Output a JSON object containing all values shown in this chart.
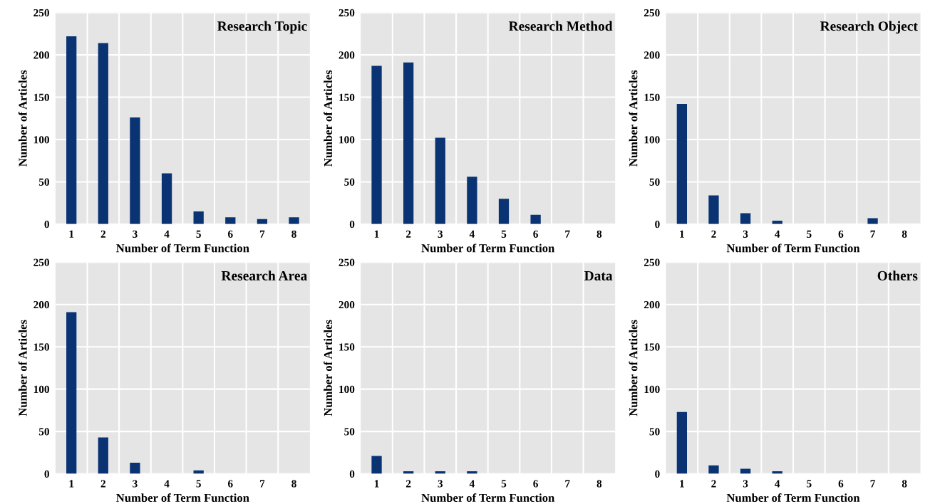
{
  "chart_data": [
    {
      "type": "bar",
      "title": "Research Topic",
      "xlabel": "Number of Term Function",
      "ylabel": "Number of Articles",
      "categories": [
        "1",
        "2",
        "3",
        "4",
        "5",
        "6",
        "7",
        "8"
      ],
      "values": [
        222,
        214,
        126,
        60,
        15,
        8,
        6,
        8
      ],
      "color": "#0a3373",
      "ylim": [
        0,
        250
      ],
      "yticks": [
        0,
        50,
        100,
        150,
        200,
        250
      ],
      "grid": true
    },
    {
      "type": "bar",
      "title": "Research Method",
      "xlabel": "Number of Term Function",
      "ylabel": "Number of Articles",
      "categories": [
        "1",
        "2",
        "3",
        "4",
        "5",
        "6",
        "7",
        "8"
      ],
      "values": [
        187,
        191,
        102,
        56,
        30,
        11,
        0,
        0
      ],
      "color": "#0a3373",
      "ylim": [
        0,
        250
      ],
      "yticks": [
        0,
        50,
        100,
        150,
        200,
        250
      ],
      "grid": true
    },
    {
      "type": "bar",
      "title": "Research Object",
      "xlabel": "Number of Term Function",
      "ylabel": "Number of Articles",
      "categories": [
        "1",
        "2",
        "3",
        "4",
        "5",
        "6",
        "7",
        "8"
      ],
      "values": [
        142,
        34,
        13,
        4,
        0,
        0,
        7,
        0
      ],
      "color": "#0a3373",
      "ylim": [
        0,
        250
      ],
      "yticks": [
        0,
        50,
        100,
        150,
        200,
        250
      ],
      "grid": true
    },
    {
      "type": "bar",
      "title": "Research Area",
      "xlabel": "Number of Term Function",
      "ylabel": "Number of Articles",
      "categories": [
        "1",
        "2",
        "3",
        "4",
        "5",
        "6",
        "7",
        "8"
      ],
      "values": [
        191,
        43,
        13,
        0,
        4,
        0,
        0,
        0
      ],
      "color": "#0a3373",
      "ylim": [
        0,
        250
      ],
      "yticks": [
        0,
        50,
        100,
        150,
        200,
        250
      ],
      "grid": true
    },
    {
      "type": "bar",
      "title": "Data",
      "xlabel": "Number of Term Function",
      "ylabel": "Number of Articles",
      "categories": [
        "1",
        "2",
        "3",
        "4",
        "5",
        "6",
        "7",
        "8"
      ],
      "values": [
        21,
        3,
        3,
        3,
        0,
        0,
        0,
        0
      ],
      "color": "#0a3373",
      "ylim": [
        0,
        250
      ],
      "yticks": [
        0,
        50,
        100,
        150,
        200,
        250
      ],
      "grid": true
    },
    {
      "type": "bar",
      "title": "Others",
      "xlabel": "Number of Term Function",
      "ylabel": "Number of Articles",
      "categories": [
        "1",
        "2",
        "3",
        "4",
        "5",
        "6",
        "7",
        "8"
      ],
      "values": [
        73,
        10,
        6,
        3,
        0,
        0,
        0,
        0
      ],
      "color": "#0a3373",
      "ylim": [
        0,
        250
      ],
      "yticks": [
        0,
        50,
        100,
        150,
        200,
        250
      ],
      "grid": true
    }
  ]
}
